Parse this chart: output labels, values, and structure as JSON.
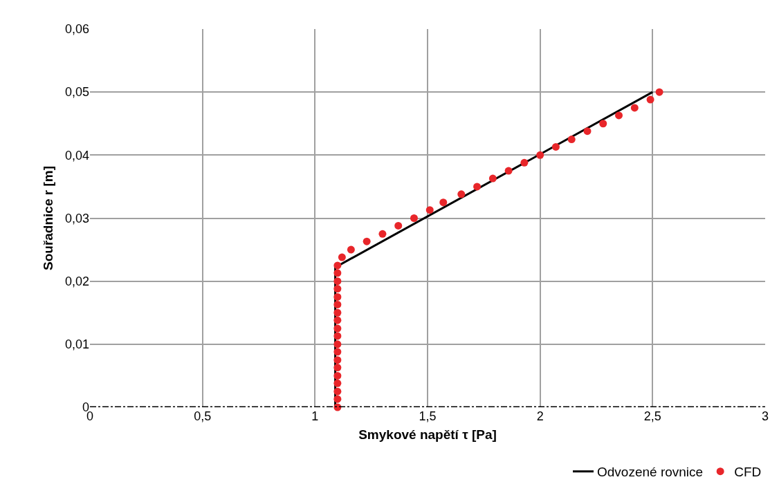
{
  "chart_data": {
    "type": "scatter",
    "xlabel": "Smykové napětí τ [Pa]",
    "ylabel": "Souřadnice r [m]",
    "xlim": [
      0,
      3
    ],
    "ylim": [
      0,
      0.06
    ],
    "xticks": [
      0,
      {
        "value": 0.5,
        "label": "0,5"
      },
      1,
      {
        "value": 1.5,
        "label": "1,5"
      },
      2,
      {
        "value": 2.5,
        "label": "2,5"
      },
      3
    ],
    "yticks": [
      0,
      {
        "value": 0.01,
        "label": "0,01"
      },
      {
        "value": 0.02,
        "label": "0,02"
      },
      {
        "value": 0.03,
        "label": "0,03"
      },
      {
        "value": 0.04,
        "label": "0,04"
      },
      {
        "value": 0.05,
        "label": "0,05"
      },
      {
        "value": 0.06,
        "label": "0,06"
      }
    ],
    "grid": true,
    "legend": "bottom right",
    "ref_lines": [
      {
        "axis": "y",
        "value": 0,
        "color": "#000000",
        "line_style": "dashed"
      }
    ],
    "series": [
      {
        "name": "Odvozené rovnice",
        "type": "line",
        "color": "#000000",
        "marker": "none",
        "line_style": "solid",
        "x": [
          1.09,
          1.09,
          2.5
        ],
        "values": [
          0,
          0.0222,
          0.05
        ]
      },
      {
        "name": "CFD",
        "color": "#e8262a",
        "marker": "circle",
        "x": [
          1.1,
          1.1,
          1.1,
          1.1,
          1.1,
          1.1,
          1.1,
          1.1,
          1.1,
          1.1,
          1.1,
          1.1,
          1.1,
          1.1,
          1.1,
          1.1,
          1.1,
          1.1,
          1.1,
          1.12,
          1.16,
          1.23,
          1.3,
          1.37,
          1.44,
          1.51,
          1.57,
          1.65,
          1.72,
          1.79,
          1.86,
          1.93,
          2.0,
          2.07,
          2.14,
          2.21,
          2.28,
          2.35,
          2.42,
          2.49,
          2.53
        ],
        "values": [
          0,
          0.0013,
          0.0025,
          0.0038,
          0.005,
          0.0063,
          0.0075,
          0.0088,
          0.01,
          0.0113,
          0.0125,
          0.0138,
          0.015,
          0.0163,
          0.0175,
          0.0188,
          0.02,
          0.0213,
          0.0225,
          0.0238,
          0.025,
          0.0263,
          0.0275,
          0.0288,
          0.03,
          0.0313,
          0.0325,
          0.0338,
          0.035,
          0.0363,
          0.0375,
          0.0388,
          0.04,
          0.0413,
          0.0425,
          0.0438,
          0.045,
          0.0463,
          0.0475,
          0.0488,
          0.05
        ]
      }
    ]
  }
}
